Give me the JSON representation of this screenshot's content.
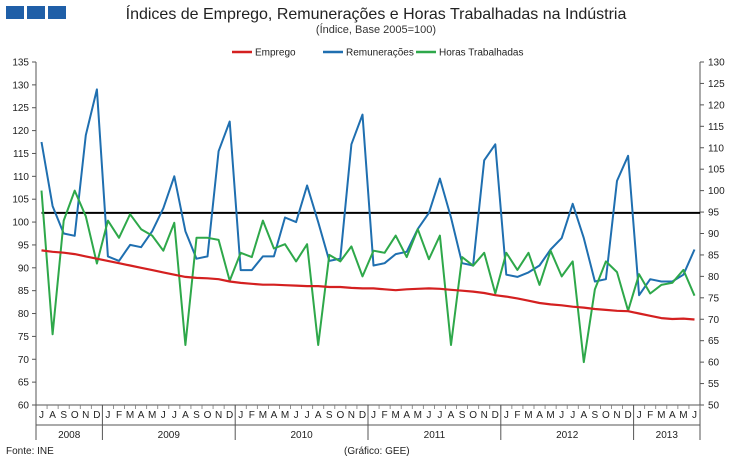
{
  "header": {
    "title": "Índices de Emprego, Remunerações e Horas Trabalhadas na Indústria",
    "subtitle": "(Índice, Base 2005=100)"
  },
  "footer": {
    "source": "Fonte: INE",
    "credit": "(Gráfico: GEE)"
  },
  "colors": {
    "emprego": "#d42020",
    "remuneracoes": "#1f6fb0",
    "horas": "#2ea84a",
    "reference": "#000000",
    "logo": "#1f5fa8"
  },
  "chart_data": {
    "type": "line",
    "title": "Índices de Emprego, Remunerações e Horas Trabalhadas na Indústria",
    "subtitle": "(Índice, Base 2005=100)",
    "legend_position": "top-center",
    "grid": false,
    "x_month_labels": [
      "J",
      "A",
      "S",
      "O",
      "N",
      "D",
      "J",
      "F",
      "M",
      "A",
      "M",
      "J",
      "J",
      "A",
      "S",
      "O",
      "N",
      "D",
      "J",
      "F",
      "M",
      "A",
      "M",
      "J",
      "J",
      "A",
      "S",
      "O",
      "N",
      "D",
      "J",
      "F",
      "M",
      "A",
      "M",
      "J",
      "J",
      "A",
      "S",
      "O",
      "N",
      "D",
      "J",
      "F",
      "M",
      "A",
      "M",
      "J",
      "J",
      "A",
      "S",
      "O",
      "N",
      "D",
      "J",
      "F",
      "M",
      "A",
      "M",
      "J"
    ],
    "year_groups": [
      {
        "label": "2008",
        "count": 6
      },
      {
        "label": "2009",
        "count": 12
      },
      {
        "label": "2010",
        "count": 12
      },
      {
        "label": "2011",
        "count": 12
      },
      {
        "label": "2012",
        "count": 12
      },
      {
        "label": "2013",
        "count": 6
      }
    ],
    "left_axis": {
      "min": 60,
      "max": 135,
      "step": 5
    },
    "right_axis": {
      "min": 50,
      "max": 130,
      "step": 5
    },
    "reference_line": {
      "value": 102,
      "axis": "left"
    },
    "series": [
      {
        "name": "Emprego",
        "axis": "left",
        "values": [
          93.8,
          93.5,
          93.3,
          93.0,
          92.5,
          92.0,
          91.5,
          91.0,
          90.5,
          90.0,
          89.5,
          89.0,
          88.5,
          88.0,
          87.8,
          87.7,
          87.5,
          87.0,
          86.7,
          86.5,
          86.3,
          86.3,
          86.2,
          86.1,
          86.0,
          86.0,
          85.8,
          85.8,
          85.6,
          85.5,
          85.5,
          85.3,
          85.1,
          85.3,
          85.4,
          85.5,
          85.4,
          85.2,
          85.0,
          84.8,
          84.5,
          84.0,
          83.7,
          83.3,
          82.8,
          82.3,
          82.0,
          81.8,
          81.5,
          81.3,
          81.0,
          80.8,
          80.6,
          80.5,
          80.0,
          79.5,
          79.0,
          78.8,
          78.9,
          78.7
        ]
      },
      {
        "name": "Remunerações",
        "axis": "left",
        "values": [
          117.5,
          103.5,
          97.5,
          97.0,
          119.0,
          129.0,
          92.5,
          91.5,
          95.0,
          94.5,
          98.0,
          103.0,
          110.0,
          98.0,
          92.0,
          92.5,
          115.5,
          122.0,
          89.5,
          89.5,
          92.5,
          92.5,
          101.0,
          100.0,
          108.0,
          100.0,
          91.5,
          92.0,
          117.0,
          123.5,
          90.5,
          91.0,
          93.0,
          93.5,
          98.5,
          102.0,
          109.5,
          101.0,
          91.0,
          90.5,
          113.5,
          117.0,
          88.5,
          88.0,
          89.0,
          90.5,
          94.0,
          96.5,
          104.0,
          96.5,
          87.0,
          87.5,
          109.0,
          114.5,
          84.0,
          87.5,
          87.0,
          87.0,
          88.5,
          94.0
        ]
      },
      {
        "name": "Horas Trabalhadas",
        "axis": "right",
        "values": [
          100.0,
          66.5,
          93.0,
          100.0,
          94.0,
          83.0,
          93.0,
          89.0,
          94.5,
          91.0,
          89.5,
          86.0,
          92.5,
          64.0,
          89.0,
          89.0,
          88.5,
          79.0,
          85.5,
          84.5,
          93.0,
          86.5,
          87.5,
          83.5,
          87.5,
          64.0,
          85.0,
          83.5,
          87.0,
          80.0,
          86.0,
          85.5,
          89.5,
          84.5,
          91.0,
          84.0,
          89.5,
          64.0,
          84.5,
          82.5,
          85.5,
          76.0,
          85.5,
          81.5,
          85.5,
          78.0,
          86.0,
          80.0,
          83.5,
          60.0,
          77.0,
          83.5,
          81.0,
          72.0,
          80.5,
          76.0,
          78.0,
          78.5,
          81.5,
          75.5
        ]
      }
    ]
  }
}
